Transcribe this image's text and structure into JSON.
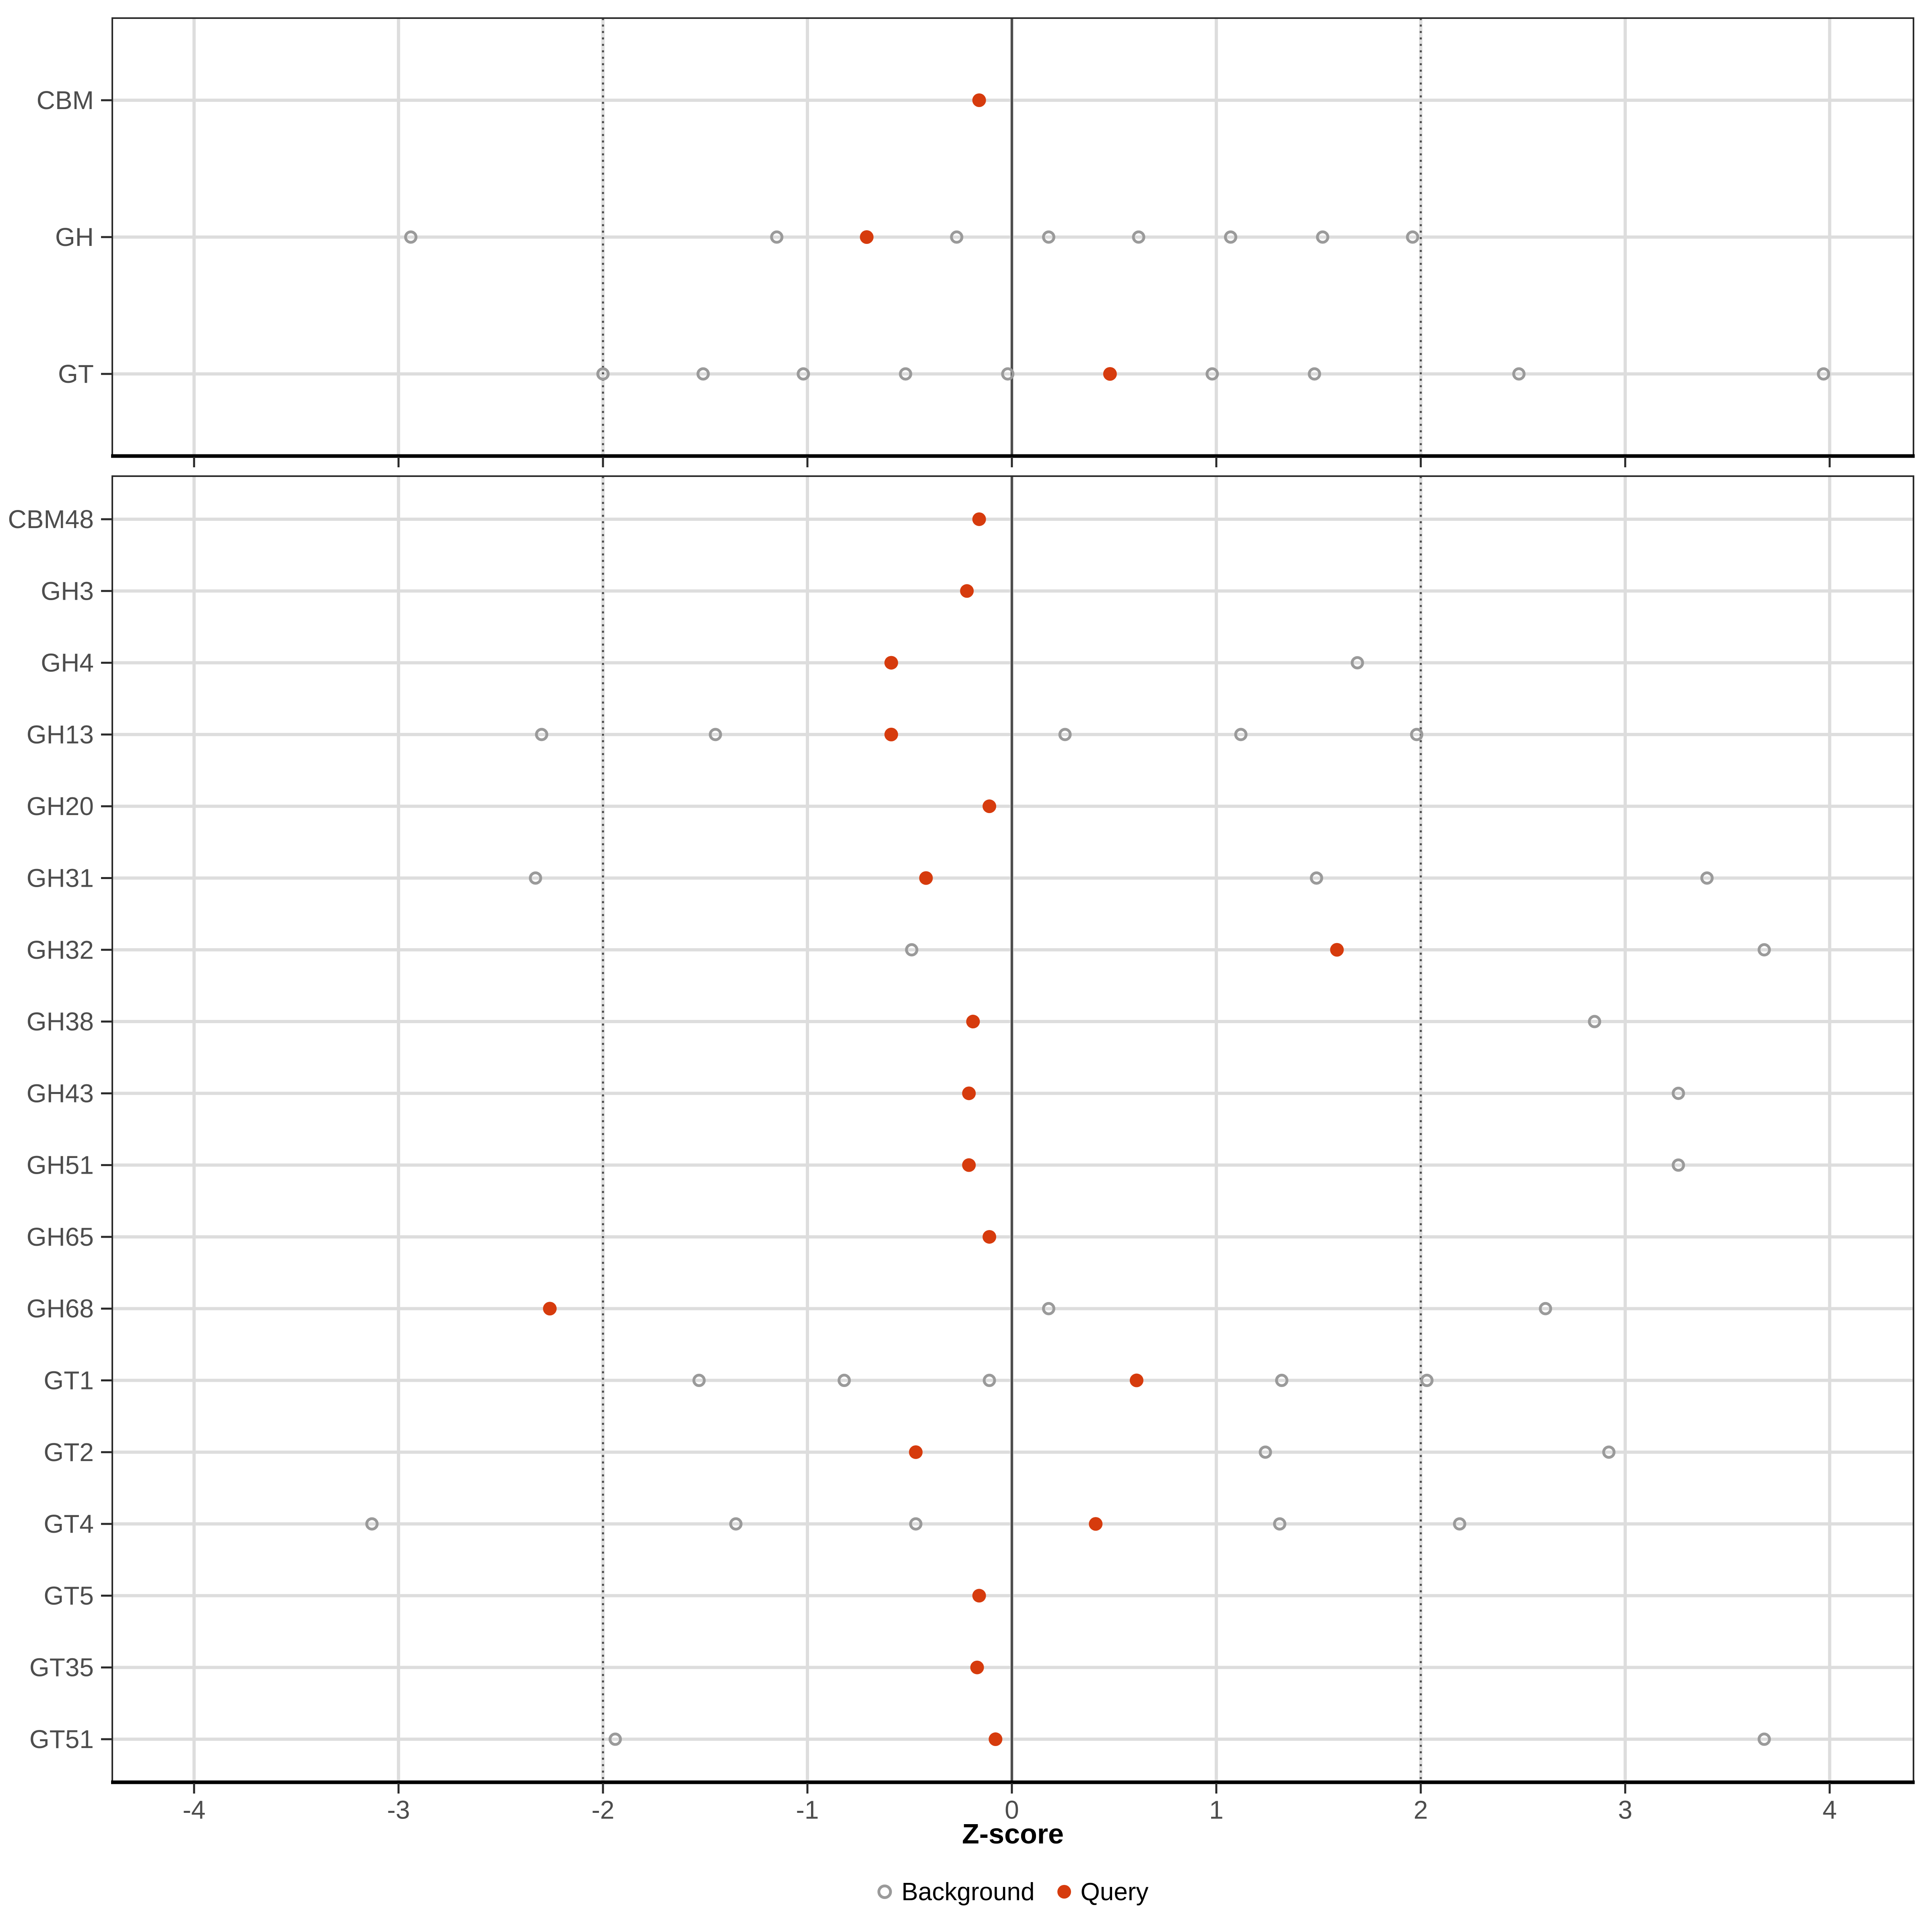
{
  "chart_data": {
    "type": "scatter",
    "title": "",
    "xlabel": "Z-score",
    "x_ticks": [
      -4,
      -3,
      -2,
      -1,
      0,
      1,
      2,
      3,
      4
    ],
    "xlim": [
      -4.4,
      4.41
    ],
    "grid": "major-vertical-and-row-lines",
    "reference_lines": {
      "solid_at": 0,
      "dotted_at": [
        -2,
        2
      ]
    },
    "legend_position": "bottom-center",
    "legend": [
      {
        "label": "Background",
        "marker": "open-circle",
        "color": "#9A9A9A"
      },
      {
        "label": "Query",
        "marker": "filled-circle",
        "color": "#D63B0D"
      }
    ],
    "panels": [
      {
        "name": "class-summary",
        "rows": [
          {
            "label": "CBM",
            "query": -0.16,
            "background": []
          },
          {
            "label": "GH",
            "query": -0.71,
            "background": [
              -2.94,
              -1.15,
              -0.27,
              0.18,
              0.62,
              1.07,
              1.52,
              1.96
            ]
          },
          {
            "label": "GT",
            "query": 0.48,
            "background": [
              -2.0,
              -1.51,
              -1.02,
              -0.52,
              -0.02,
              0.98,
              1.48,
              2.48,
              3.97
            ]
          }
        ]
      },
      {
        "name": "family-detail",
        "rows": [
          {
            "label": "CBM48",
            "query": -0.16,
            "background": []
          },
          {
            "label": "GH3",
            "query": -0.22,
            "background": []
          },
          {
            "label": "GH4",
            "query": -0.59,
            "background": [
              1.69
            ]
          },
          {
            "label": "GH13",
            "query": -0.59,
            "background": [
              -2.3,
              -1.45,
              0.26,
              1.12,
              1.98
            ]
          },
          {
            "label": "GH20",
            "query": -0.11,
            "background": []
          },
          {
            "label": "GH31",
            "query": -0.42,
            "background": [
              -2.33,
              1.49,
              3.4
            ]
          },
          {
            "label": "GH32",
            "query": 1.59,
            "background": [
              -0.49,
              3.68
            ]
          },
          {
            "label": "GH38",
            "query": -0.19,
            "background": [
              2.85
            ]
          },
          {
            "label": "GH43",
            "query": -0.21,
            "background": [
              3.26
            ]
          },
          {
            "label": "GH51",
            "query": -0.21,
            "background": [
              3.26
            ]
          },
          {
            "label": "GH65",
            "query": -0.11,
            "background": []
          },
          {
            "label": "GH68",
            "query": -2.26,
            "background": [
              0.18,
              2.61
            ]
          },
          {
            "label": "GT1",
            "query": 0.61,
            "background": [
              -1.53,
              -0.82,
              -0.11,
              1.32,
              2.03
            ]
          },
          {
            "label": "GT2",
            "query": -0.47,
            "background": [
              1.24,
              2.92
            ]
          },
          {
            "label": "GT4",
            "query": 0.41,
            "background": [
              -3.13,
              -1.35,
              -0.47,
              1.31,
              2.19
            ]
          },
          {
            "label": "GT5",
            "query": -0.16,
            "background": []
          },
          {
            "label": "GT35",
            "query": -0.17,
            "background": []
          },
          {
            "label": "GT51",
            "query": -0.08,
            "background": [
              -1.94,
              3.68
            ]
          }
        ]
      }
    ]
  },
  "colors": {
    "query": "#D63B0D",
    "background_stroke": "#9A9A9A",
    "gridline": "#DDDDDD",
    "reference": "#4D4D4D",
    "axis_text": "#4D4D4D",
    "panel_border": "#2A2A2A",
    "axis_line": "#000000",
    "legend_text": "#000000"
  }
}
